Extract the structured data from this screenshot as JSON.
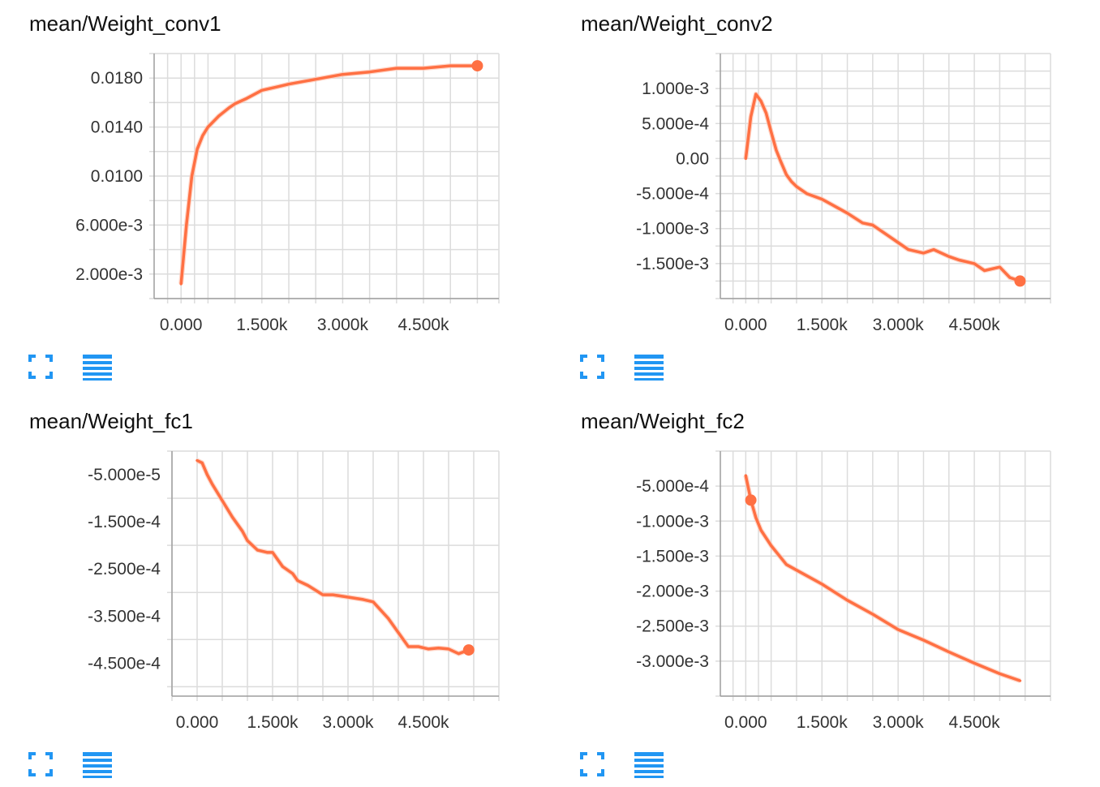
{
  "colors": {
    "line": "#ff7043",
    "halo": "#ffc6b3",
    "grid": "#dcdcdc",
    "axis": "#9e9e9e",
    "icon": "#2196f3"
  },
  "icons": {
    "expand": "expand-icon",
    "data_table": "list-icon"
  },
  "chart_data": [
    {
      "type": "line",
      "title": "mean/Weight_conv1",
      "xlabel": "",
      "ylabel": "",
      "xlim": [
        -500,
        5900
      ],
      "ylim": [
        0,
        0.02
      ],
      "x_ticks": [
        0,
        1500,
        3000,
        4500
      ],
      "x_tick_labels": [
        "0.000",
        "1.500k",
        "3.000k",
        "4.500k"
      ],
      "y_ticks": [
        0.002,
        0.006,
        0.01,
        0.014,
        0.018
      ],
      "y_tick_labels": [
        "2.000e-3",
        "6.000e-3",
        "0.0100",
        "0.0140",
        "0.0180"
      ],
      "x_grid": [
        -250,
        0,
        250,
        500,
        1000,
        1500,
        2000,
        2500,
        3000,
        3500,
        4000,
        4500,
        5000,
        5500,
        5900
      ],
      "y_grid": [
        0,
        0.002,
        0.004,
        0.006,
        0.008,
        0.01,
        0.012,
        0.014,
        0.016,
        0.018,
        0.02
      ],
      "marker_index": -1,
      "series": [
        {
          "x": [
            0,
            100,
            200,
            300,
            400,
            500,
            700,
            900,
            1000,
            1200,
            1500,
            1800,
            2000,
            2500,
            3000,
            3500,
            4000,
            4500,
            5000,
            5500
          ],
          "y": [
            0.0012,
            0.006,
            0.01,
            0.0122,
            0.0133,
            0.014,
            0.0149,
            0.0156,
            0.0159,
            0.0163,
            0.017,
            0.0173,
            0.0175,
            0.0179,
            0.0183,
            0.0185,
            0.0188,
            0.0188,
            0.019,
            0.019
          ]
        }
      ]
    },
    {
      "type": "line",
      "title": "mean/Weight_conv2",
      "xlabel": "",
      "ylabel": "",
      "xlim": [
        -500,
        6000
      ],
      "ylim": [
        -0.002,
        0.0015
      ],
      "x_ticks": [
        0,
        1500,
        3000,
        4500
      ],
      "x_tick_labels": [
        "0.000",
        "1.500k",
        "3.000k",
        "4.500k"
      ],
      "y_ticks": [
        -0.0015,
        -0.001,
        -0.0005,
        0,
        0.0005,
        0.001
      ],
      "y_tick_labels": [
        "-1.500e-3",
        "-1.000e-3",
        "-5.000e-4",
        "0.00",
        "5.000e-4",
        "1.000e-3"
      ],
      "x_grid": [
        -250,
        0,
        250,
        500,
        1000,
        1500,
        2000,
        2500,
        3000,
        3500,
        4000,
        4500,
        5000,
        5500,
        6000
      ],
      "y_grid": [
        -0.002,
        -0.00175,
        -0.0015,
        -0.00125,
        -0.001,
        -0.00075,
        -0.0005,
        -0.00025,
        0,
        0.00025,
        0.0005,
        0.00075,
        0.001,
        0.00125,
        0.0015
      ],
      "marker_index": -1,
      "series": [
        {
          "x": [
            0,
            100,
            200,
            300,
            400,
            500,
            600,
            700,
            800,
            900,
            1000,
            1200,
            1500,
            1800,
            2000,
            2300,
            2500,
            2800,
            3000,
            3200,
            3500,
            3700,
            4000,
            4200,
            4500,
            4700,
            5000,
            5200,
            5400
          ],
          "y": [
            0.0,
            0.0006,
            0.00092,
            0.00082,
            0.00065,
            0.00038,
            0.00012,
            -6e-05,
            -0.00023,
            -0.00033,
            -0.0004,
            -0.0005,
            -0.00058,
            -0.0007,
            -0.00078,
            -0.00092,
            -0.00095,
            -0.0011,
            -0.0012,
            -0.0013,
            -0.00135,
            -0.0013,
            -0.0014,
            -0.00145,
            -0.0015,
            -0.0016,
            -0.00155,
            -0.0017,
            -0.00175
          ]
        }
      ]
    },
    {
      "type": "line",
      "title": "mean/Weight_fc1",
      "xlabel": "",
      "ylabel": "",
      "xlim": [
        -500,
        6000
      ],
      "ylim": [
        -0.00052,
        0.0
      ],
      "x_ticks": [
        0,
        1500,
        3000,
        4500
      ],
      "x_tick_labels": [
        "0.000",
        "1.500k",
        "3.000k",
        "4.500k"
      ],
      "y_ticks": [
        -0.00045,
        -0.00035,
        -0.00025,
        -0.00015,
        -5e-05
      ],
      "y_tick_labels": [
        "-4.500e-4",
        "-3.500e-4",
        "-2.500e-4",
        "-1.500e-4",
        "-5.000e-5"
      ],
      "x_grid": [
        -500,
        0,
        500,
        1000,
        1500,
        2000,
        2500,
        3000,
        3500,
        4000,
        4500,
        5000,
        5500,
        6000
      ],
      "y_grid": [
        -0.0005,
        -0.0004,
        -0.0003,
        -0.0002,
        -0.0001,
        0.0
      ],
      "marker_index": -1,
      "series": [
        {
          "x": [
            0,
            100,
            200,
            300,
            500,
            700,
            900,
            1000,
            1200,
            1400,
            1500,
            1700,
            1900,
            2000,
            2200,
            2500,
            2700,
            3000,
            3300,
            3500,
            3800,
            4000,
            4200,
            4400,
            4600,
            4800,
            5000,
            5200,
            5400
          ],
          "y": [
            -2e-05,
            -2.5e-05,
            -5e-05,
            -7e-05,
            -0.000105,
            -0.00014,
            -0.00017,
            -0.00019,
            -0.00021,
            -0.000215,
            -0.000215,
            -0.000245,
            -0.00026,
            -0.000275,
            -0.000285,
            -0.000305,
            -0.000305,
            -0.00031,
            -0.000315,
            -0.00032,
            -0.000355,
            -0.000385,
            -0.000415,
            -0.000415,
            -0.00042,
            -0.000418,
            -0.00042,
            -0.00043,
            -0.000422
          ]
        }
      ]
    },
    {
      "type": "line",
      "title": "mean/Weight_fc2",
      "xlabel": "",
      "ylabel": "",
      "xlim": [
        -500,
        6000
      ],
      "ylim": [
        -0.0035,
        0.0
      ],
      "x_ticks": [
        0,
        1500,
        3000,
        4500
      ],
      "x_tick_labels": [
        "0.000",
        "1.500k",
        "3.000k",
        "4.500k"
      ],
      "y_ticks": [
        -0.003,
        -0.0025,
        -0.002,
        -0.0015,
        -0.001,
        -0.0005
      ],
      "y_tick_labels": [
        "-3.000e-3",
        "-2.500e-3",
        "-2.000e-3",
        "-1.500e-3",
        "-1.000e-3",
        "-5.000e-4"
      ],
      "x_grid": [
        -250,
        0,
        250,
        500,
        1000,
        1500,
        2000,
        2500,
        3000,
        3500,
        4000,
        4500,
        5000,
        5500,
        6000
      ],
      "y_grid": [
        -0.0035,
        -0.003,
        -0.0025,
        -0.002,
        -0.0015,
        -0.001,
        -0.0005,
        0.0
      ],
      "marker_index": 1,
      "series": [
        {
          "x": [
            0,
            100,
            200,
            300,
            500,
            800,
            1000,
            1500,
            2000,
            2500,
            3000,
            3500,
            4000,
            4500,
            5000,
            5400
          ],
          "y": [
            -0.00035,
            -0.0007,
            -0.00095,
            -0.00113,
            -0.00135,
            -0.00162,
            -0.0017,
            -0.0019,
            -0.00213,
            -0.00233,
            -0.00255,
            -0.0027,
            -0.00287,
            -0.00303,
            -0.00318,
            -0.00328
          ]
        }
      ]
    }
  ]
}
